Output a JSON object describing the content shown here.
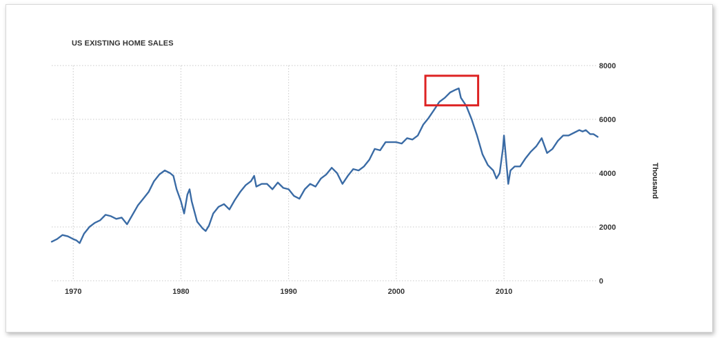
{
  "chart_data": {
    "type": "line",
    "title": "US EXISTING HOME SALES",
    "ylabel": "Thousand",
    "xlabel": "",
    "xlim": [
      1968,
      2018.7
    ],
    "ylim": [
      0,
      8000
    ],
    "x_ticks": [
      1970,
      1980,
      1990,
      2000,
      2010
    ],
    "y_ticks": [
      0,
      2000,
      4000,
      6000,
      8000
    ],
    "grid": true,
    "y_axis_position": "right",
    "colors": {
      "series": "#3a6ba5",
      "highlight": "#dd2222",
      "grid": "#c8c8c8"
    },
    "highlight_box": {
      "x": [
        2002.7,
        2007.6
      ],
      "y": [
        6520,
        7620
      ]
    },
    "series": [
      {
        "x": [
          1968.0,
          1968.5,
          1969.0,
          1969.5,
          1970.0,
          1970.3,
          1970.6,
          1971.0,
          1971.5,
          1972.0,
          1972.5,
          1973.0,
          1973.5,
          1974.0,
          1974.5,
          1975.0,
          1975.5,
          1976.0,
          1976.5,
          1977.0,
          1977.5,
          1978.0,
          1978.5,
          1979.0,
          1979.3,
          1979.6,
          1980.0,
          1980.3,
          1980.6,
          1980.8,
          1981.0,
          1981.5,
          1982.0,
          1982.3,
          1982.6,
          1983.0,
          1983.5,
          1984.0,
          1984.5,
          1985.0,
          1985.5,
          1986.0,
          1986.5,
          1986.8,
          1987.0,
          1987.5,
          1988.0,
          1988.5,
          1989.0,
          1989.5,
          1990.0,
          1990.5,
          1991.0,
          1991.5,
          1992.0,
          1992.5,
          1993.0,
          1993.5,
          1994.0,
          1994.5,
          1995.0,
          1995.5,
          1996.0,
          1996.5,
          1997.0,
          1997.5,
          1998.0,
          1998.5,
          1999.0,
          1999.5,
          2000.0,
          2000.5,
          2001.0,
          2001.5,
          2002.0,
          2002.5,
          2003.0,
          2003.5,
          2004.0,
          2004.5,
          2005.0,
          2005.5,
          2005.8,
          2006.0,
          2006.5,
          2007.0,
          2007.5,
          2008.0,
          2008.5,
          2009.0,
          2009.3,
          2009.6,
          2009.9,
          2010.0,
          2010.2,
          2010.4,
          2010.6,
          2011.0,
          2011.5,
          2012.0,
          2012.5,
          2013.0,
          2013.5,
          2014.0,
          2014.5,
          2015.0,
          2015.5,
          2016.0,
          2016.5,
          2017.0,
          2017.3,
          2017.6,
          2018.0,
          2018.3,
          2018.7
        ],
        "y": [
          1450,
          1550,
          1700,
          1650,
          1550,
          1500,
          1400,
          1750,
          2000,
          2150,
          2250,
          2450,
          2400,
          2300,
          2350,
          2100,
          2450,
          2800,
          3050,
          3300,
          3700,
          3950,
          4100,
          4000,
          3900,
          3400,
          2950,
          2500,
          3200,
          3400,
          2950,
          2200,
          1950,
          1850,
          2050,
          2500,
          2750,
          2850,
          2650,
          3000,
          3300,
          3550,
          3700,
          3900,
          3500,
          3600,
          3600,
          3400,
          3650,
          3450,
          3400,
          3150,
          3050,
          3400,
          3600,
          3500,
          3800,
          3950,
          4200,
          4000,
          3600,
          3900,
          4150,
          4100,
          4250,
          4500,
          4900,
          4850,
          5150,
          5150,
          5150,
          5100,
          5300,
          5250,
          5400,
          5800,
          6050,
          6350,
          6650,
          6800,
          7000,
          7100,
          7150,
          6800,
          6500,
          6000,
          5400,
          4700,
          4300,
          4100,
          3800,
          4000,
          4900,
          5400,
          4500,
          3600,
          4100,
          4250,
          4250,
          4550,
          4800,
          5000,
          5300,
          4750,
          4900,
          5200,
          5400,
          5400,
          5500,
          5600,
          5550,
          5600,
          5450,
          5450,
          5350
        ]
      }
    ]
  }
}
